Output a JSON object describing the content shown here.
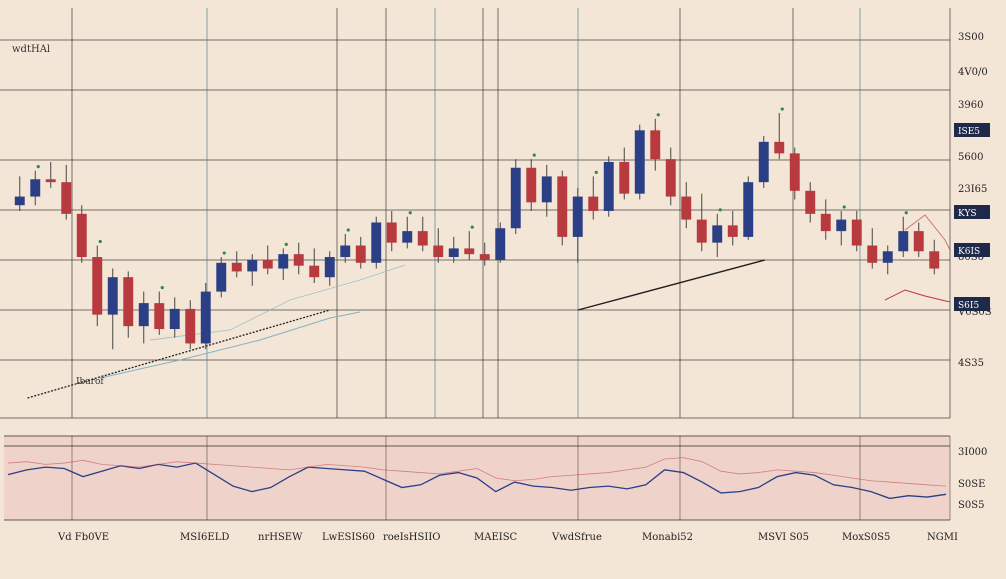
{
  "colors": {
    "background": "#f4e6d6",
    "grid": "#2b2b2b",
    "bullish": "#2a3f86",
    "bearish": "#b83a3f",
    "wick": "#444444",
    "accent_green": "#2f8a4a",
    "oscillator_line": "#2a3f86",
    "oscillator_fill": "#ecc9c4",
    "badge_bg": "#1f2a4a",
    "badge_text": "#ffffff",
    "trend_line": "#222222",
    "trend_soft": "#7fb3c8"
  },
  "chart_data": [
    {
      "type": "candlestick",
      "title": "",
      "top_left_label": "wdtHAl",
      "xlabel": "",
      "ylabel": "",
      "ylim": [
        0,
        100
      ],
      "y_tick_labels": [
        "3S00",
        "4V0/0",
        "3960",
        "5600",
        "23I65",
        "80S6",
        "V0S0S",
        "4S35"
      ],
      "price_badges": [
        "ISE5",
        "KYS",
        "K6IS",
        "S6I5"
      ],
      "x_tick_labels": [
        "Vd Fb0VE",
        "MSI6ELD",
        "nrHSEW",
        "LwESIS60",
        "roeIsHSIIO",
        "MAEISC",
        "VwdSfrue",
        "Monabi52",
        "MSVI S05",
        "MoxS0S5",
        "NGMI"
      ],
      "annotation_low": "Ibarof",
      "candles": [
        {
          "o": 60,
          "h": 70,
          "l": 58,
          "c": 63
        },
        {
          "o": 63,
          "h": 72,
          "l": 60,
          "c": 69
        },
        {
          "o": 69,
          "h": 75,
          "l": 66,
          "c": 68
        },
        {
          "o": 68,
          "h": 74,
          "l": 55,
          "c": 57
        },
        {
          "o": 57,
          "h": 60,
          "l": 40,
          "c": 42
        },
        {
          "o": 42,
          "h": 46,
          "l": 18,
          "c": 22
        },
        {
          "o": 22,
          "h": 38,
          "l": 10,
          "c": 35
        },
        {
          "o": 35,
          "h": 37,
          "l": 14,
          "c": 18
        },
        {
          "o": 18,
          "h": 30,
          "l": 12,
          "c": 26
        },
        {
          "o": 26,
          "h": 30,
          "l": 15,
          "c": 17
        },
        {
          "o": 17,
          "h": 28,
          "l": 14,
          "c": 24
        },
        {
          "o": 24,
          "h": 27,
          "l": 10,
          "c": 12
        },
        {
          "o": 12,
          "h": 33,
          "l": 10,
          "c": 30
        },
        {
          "o": 30,
          "h": 42,
          "l": 28,
          "c": 40
        },
        {
          "o": 40,
          "h": 44,
          "l": 35,
          "c": 37
        },
        {
          "o": 37,
          "h": 43,
          "l": 32,
          "c": 41
        },
        {
          "o": 41,
          "h": 46,
          "l": 36,
          "c": 38
        },
        {
          "o": 38,
          "h": 45,
          "l": 34,
          "c": 43
        },
        {
          "o": 43,
          "h": 47,
          "l": 36,
          "c": 39
        },
        {
          "o": 39,
          "h": 45,
          "l": 33,
          "c": 35
        },
        {
          "o": 35,
          "h": 44,
          "l": 32,
          "c": 42
        },
        {
          "o": 42,
          "h": 50,
          "l": 40,
          "c": 46
        },
        {
          "o": 46,
          "h": 49,
          "l": 38,
          "c": 40
        },
        {
          "o": 40,
          "h": 56,
          "l": 38,
          "c": 54
        },
        {
          "o": 54,
          "h": 58,
          "l": 44,
          "c": 47
        },
        {
          "o": 47,
          "h": 56,
          "l": 45,
          "c": 51
        },
        {
          "o": 51,
          "h": 56,
          "l": 44,
          "c": 46
        },
        {
          "o": 46,
          "h": 52,
          "l": 40,
          "c": 42
        },
        {
          "o": 42,
          "h": 49,
          "l": 40,
          "c": 45
        },
        {
          "o": 45,
          "h": 51,
          "l": 41,
          "c": 43
        },
        {
          "o": 43,
          "h": 47,
          "l": 39,
          "c": 41
        },
        {
          "o": 41,
          "h": 54,
          "l": 40,
          "c": 52
        },
        {
          "o": 52,
          "h": 76,
          "l": 50,
          "c": 73
        },
        {
          "o": 73,
          "h": 76,
          "l": 58,
          "c": 61
        },
        {
          "o": 61,
          "h": 74,
          "l": 56,
          "c": 70
        },
        {
          "o": 70,
          "h": 72,
          "l": 46,
          "c": 49
        },
        {
          "o": 49,
          "h": 66,
          "l": 40,
          "c": 63
        },
        {
          "o": 63,
          "h": 70,
          "l": 55,
          "c": 58
        },
        {
          "o": 58,
          "h": 77,
          "l": 56,
          "c": 75
        },
        {
          "o": 75,
          "h": 80,
          "l": 62,
          "c": 64
        },
        {
          "o": 64,
          "h": 88,
          "l": 62,
          "c": 86
        },
        {
          "o": 86,
          "h": 90,
          "l": 72,
          "c": 76
        },
        {
          "o": 76,
          "h": 80,
          "l": 60,
          "c": 63
        },
        {
          "o": 63,
          "h": 68,
          "l": 52,
          "c": 55
        },
        {
          "o": 55,
          "h": 64,
          "l": 44,
          "c": 47
        },
        {
          "o": 47,
          "h": 57,
          "l": 42,
          "c": 53
        },
        {
          "o": 53,
          "h": 58,
          "l": 46,
          "c": 49
        },
        {
          "o": 49,
          "h": 70,
          "l": 48,
          "c": 68
        },
        {
          "o": 68,
          "h": 84,
          "l": 66,
          "c": 82
        },
        {
          "o": 82,
          "h": 92,
          "l": 76,
          "c": 78
        },
        {
          "o": 78,
          "h": 80,
          "l": 62,
          "c": 65
        },
        {
          "o": 65,
          "h": 68,
          "l": 54,
          "c": 57
        },
        {
          "o": 57,
          "h": 62,
          "l": 48,
          "c": 51
        },
        {
          "o": 51,
          "h": 58,
          "l": 46,
          "c": 55
        },
        {
          "o": 55,
          "h": 58,
          "l": 44,
          "c": 46
        },
        {
          "o": 46,
          "h": 52,
          "l": 38,
          "c": 40
        },
        {
          "o": 40,
          "h": 46,
          "l": 36,
          "c": 44
        },
        {
          "o": 44,
          "h": 56,
          "l": 42,
          "c": 51
        },
        {
          "o": 51,
          "h": 54,
          "l": 42,
          "c": 44
        },
        {
          "o": 44,
          "h": 48,
          "l": 36,
          "c": 38
        }
      ],
      "trend_line": {
        "from": [
          0.5,
          -5
        ],
        "to": [
          58,
          25
        ]
      }
    },
    {
      "type": "line",
      "title": "",
      "xlabel": "",
      "ylabel": "",
      "ylim": [
        0,
        100
      ],
      "y_tick_labels": [
        "3I000",
        "S0SE",
        "S0S5"
      ],
      "series": [
        {
          "values": [
            55,
            62,
            66,
            64,
            52,
            60,
            68,
            64,
            70,
            66,
            72,
            55,
            38,
            30,
            36,
            52,
            66,
            64,
            62,
            60,
            48,
            36,
            40,
            54,
            58,
            50,
            30,
            44,
            38,
            36,
            32,
            36,
            38,
            34,
            40,
            62,
            58,
            44,
            28,
            30,
            36,
            52,
            58,
            54,
            40,
            36,
            30,
            20,
            24,
            22,
            26
          ]
        },
        {
          "values": [
            72,
            74,
            70,
            72,
            76,
            70,
            68,
            66,
            70,
            74,
            72,
            70,
            68,
            66,
            64,
            62,
            66,
            70,
            68,
            66,
            62,
            60,
            58,
            56,
            60,
            64,
            50,
            46,
            48,
            52,
            54,
            56,
            58,
            62,
            66,
            78,
            80,
            74,
            60,
            56,
            58,
            62,
            60,
            58,
            54,
            50,
            46,
            44,
            42,
            40,
            38
          ]
        }
      ]
    }
  ]
}
